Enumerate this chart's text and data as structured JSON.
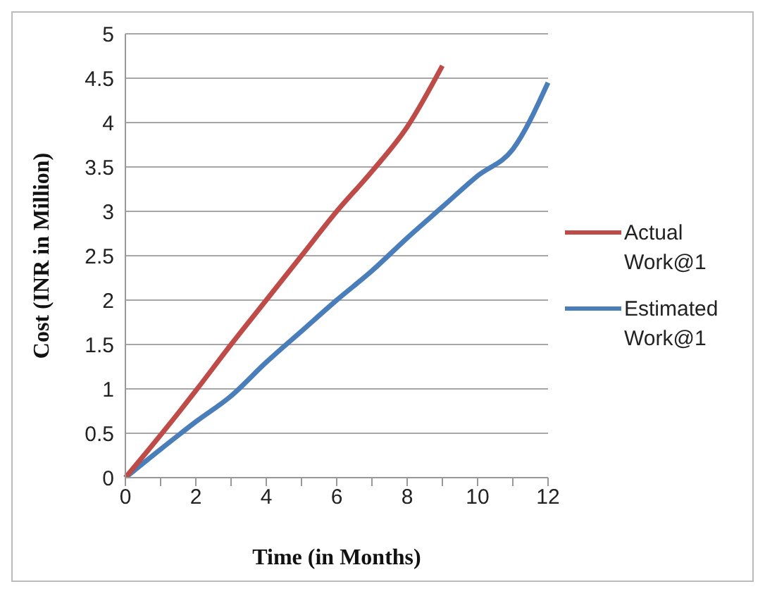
{
  "chart_data": {
    "type": "line",
    "xlabel": "Time (in Months)",
    "ylabel": "Cost  (INR in Million)",
    "categories": [
      "0",
      null,
      "2",
      null,
      "4",
      null,
      "6",
      null,
      "8",
      null,
      "10",
      null,
      "12"
    ],
    "series": [
      {
        "name": "Estimated Work@1",
        "color": "#4a7ebb",
        "values": [
          0,
          0.32,
          0.63,
          0.92,
          1.3,
          1.65,
          2.0,
          2.33,
          2.7,
          3.05,
          3.4,
          3.7,
          4.45
        ]
      },
      {
        "name": "Actual Work@1",
        "color": "#be4b48",
        "values": [
          0,
          0.48,
          0.98,
          1.5,
          2.0,
          2.5,
          3.0,
          3.45,
          3.95,
          4.64,
          null,
          null,
          null
        ]
      }
    ],
    "ylim": [
      0,
      5
    ],
    "yticks": [
      0,
      0.5,
      1,
      1.5,
      2,
      2.5,
      3,
      3.5,
      4,
      4.5,
      5
    ],
    "grid": "y",
    "legend": "right",
    "marker": "none",
    "line_style": "solid"
  }
}
